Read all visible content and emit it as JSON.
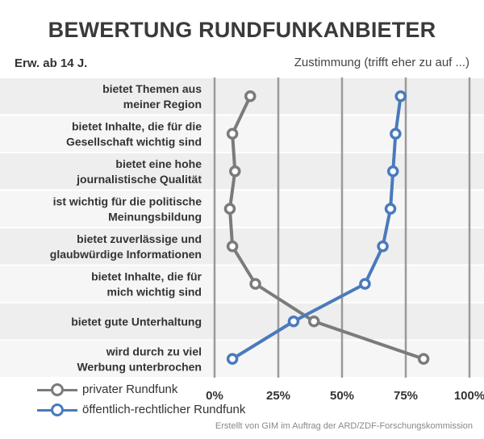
{
  "header": {
    "title": "BEWERTUNG RUNDFUNKANBIETER",
    "subtitle_left": "Erw. ab 14 J.",
    "subtitle_right": "Zustimmung (trifft eher zu auf ...)"
  },
  "footer": {
    "credit": "Erstellt von GIM im Auftrag der ARD/ZDF-Forschungskommission"
  },
  "colors": {
    "private": "#7b7b7b",
    "public": "#4a7abd",
    "band": "#eeeeee",
    "grid": "#9a9a9a"
  },
  "chart_data": {
    "type": "line",
    "orientation": "horizontal-dot-plot",
    "categories": [
      [
        "bietet Themen aus",
        "meiner Region"
      ],
      [
        "bietet Inhalte, die für die",
        "Gesellschaft wichtig sind"
      ],
      [
        "bietet eine hohe",
        "journalistische Qualität"
      ],
      [
        "ist wichtig für die politische",
        "Meinungsbildung"
      ],
      [
        "bietet zuverlässige und",
        "glaubwürdige Informationen"
      ],
      [
        "bietet Inhalte, die für",
        "mich wichtig sind"
      ],
      [
        "bietet gute Unterhaltung"
      ],
      [
        "wird durch zu viel",
        "Werbung unterbrochen"
      ]
    ],
    "x_ticks": [
      "0%",
      "25%",
      "50%",
      "75%",
      "100%"
    ],
    "xlim": [
      0,
      100
    ],
    "grid": true,
    "legend_position": "bottom-left",
    "series": [
      {
        "name": "privater Rundfunk",
        "values": [
          14,
          7,
          8,
          6,
          7,
          16,
          39,
          82
        ]
      },
      {
        "name": "öffentlich-rechtlicher Rundfunk",
        "values": [
          73,
          71,
          70,
          69,
          66,
          59,
          31,
          7
        ]
      }
    ]
  }
}
